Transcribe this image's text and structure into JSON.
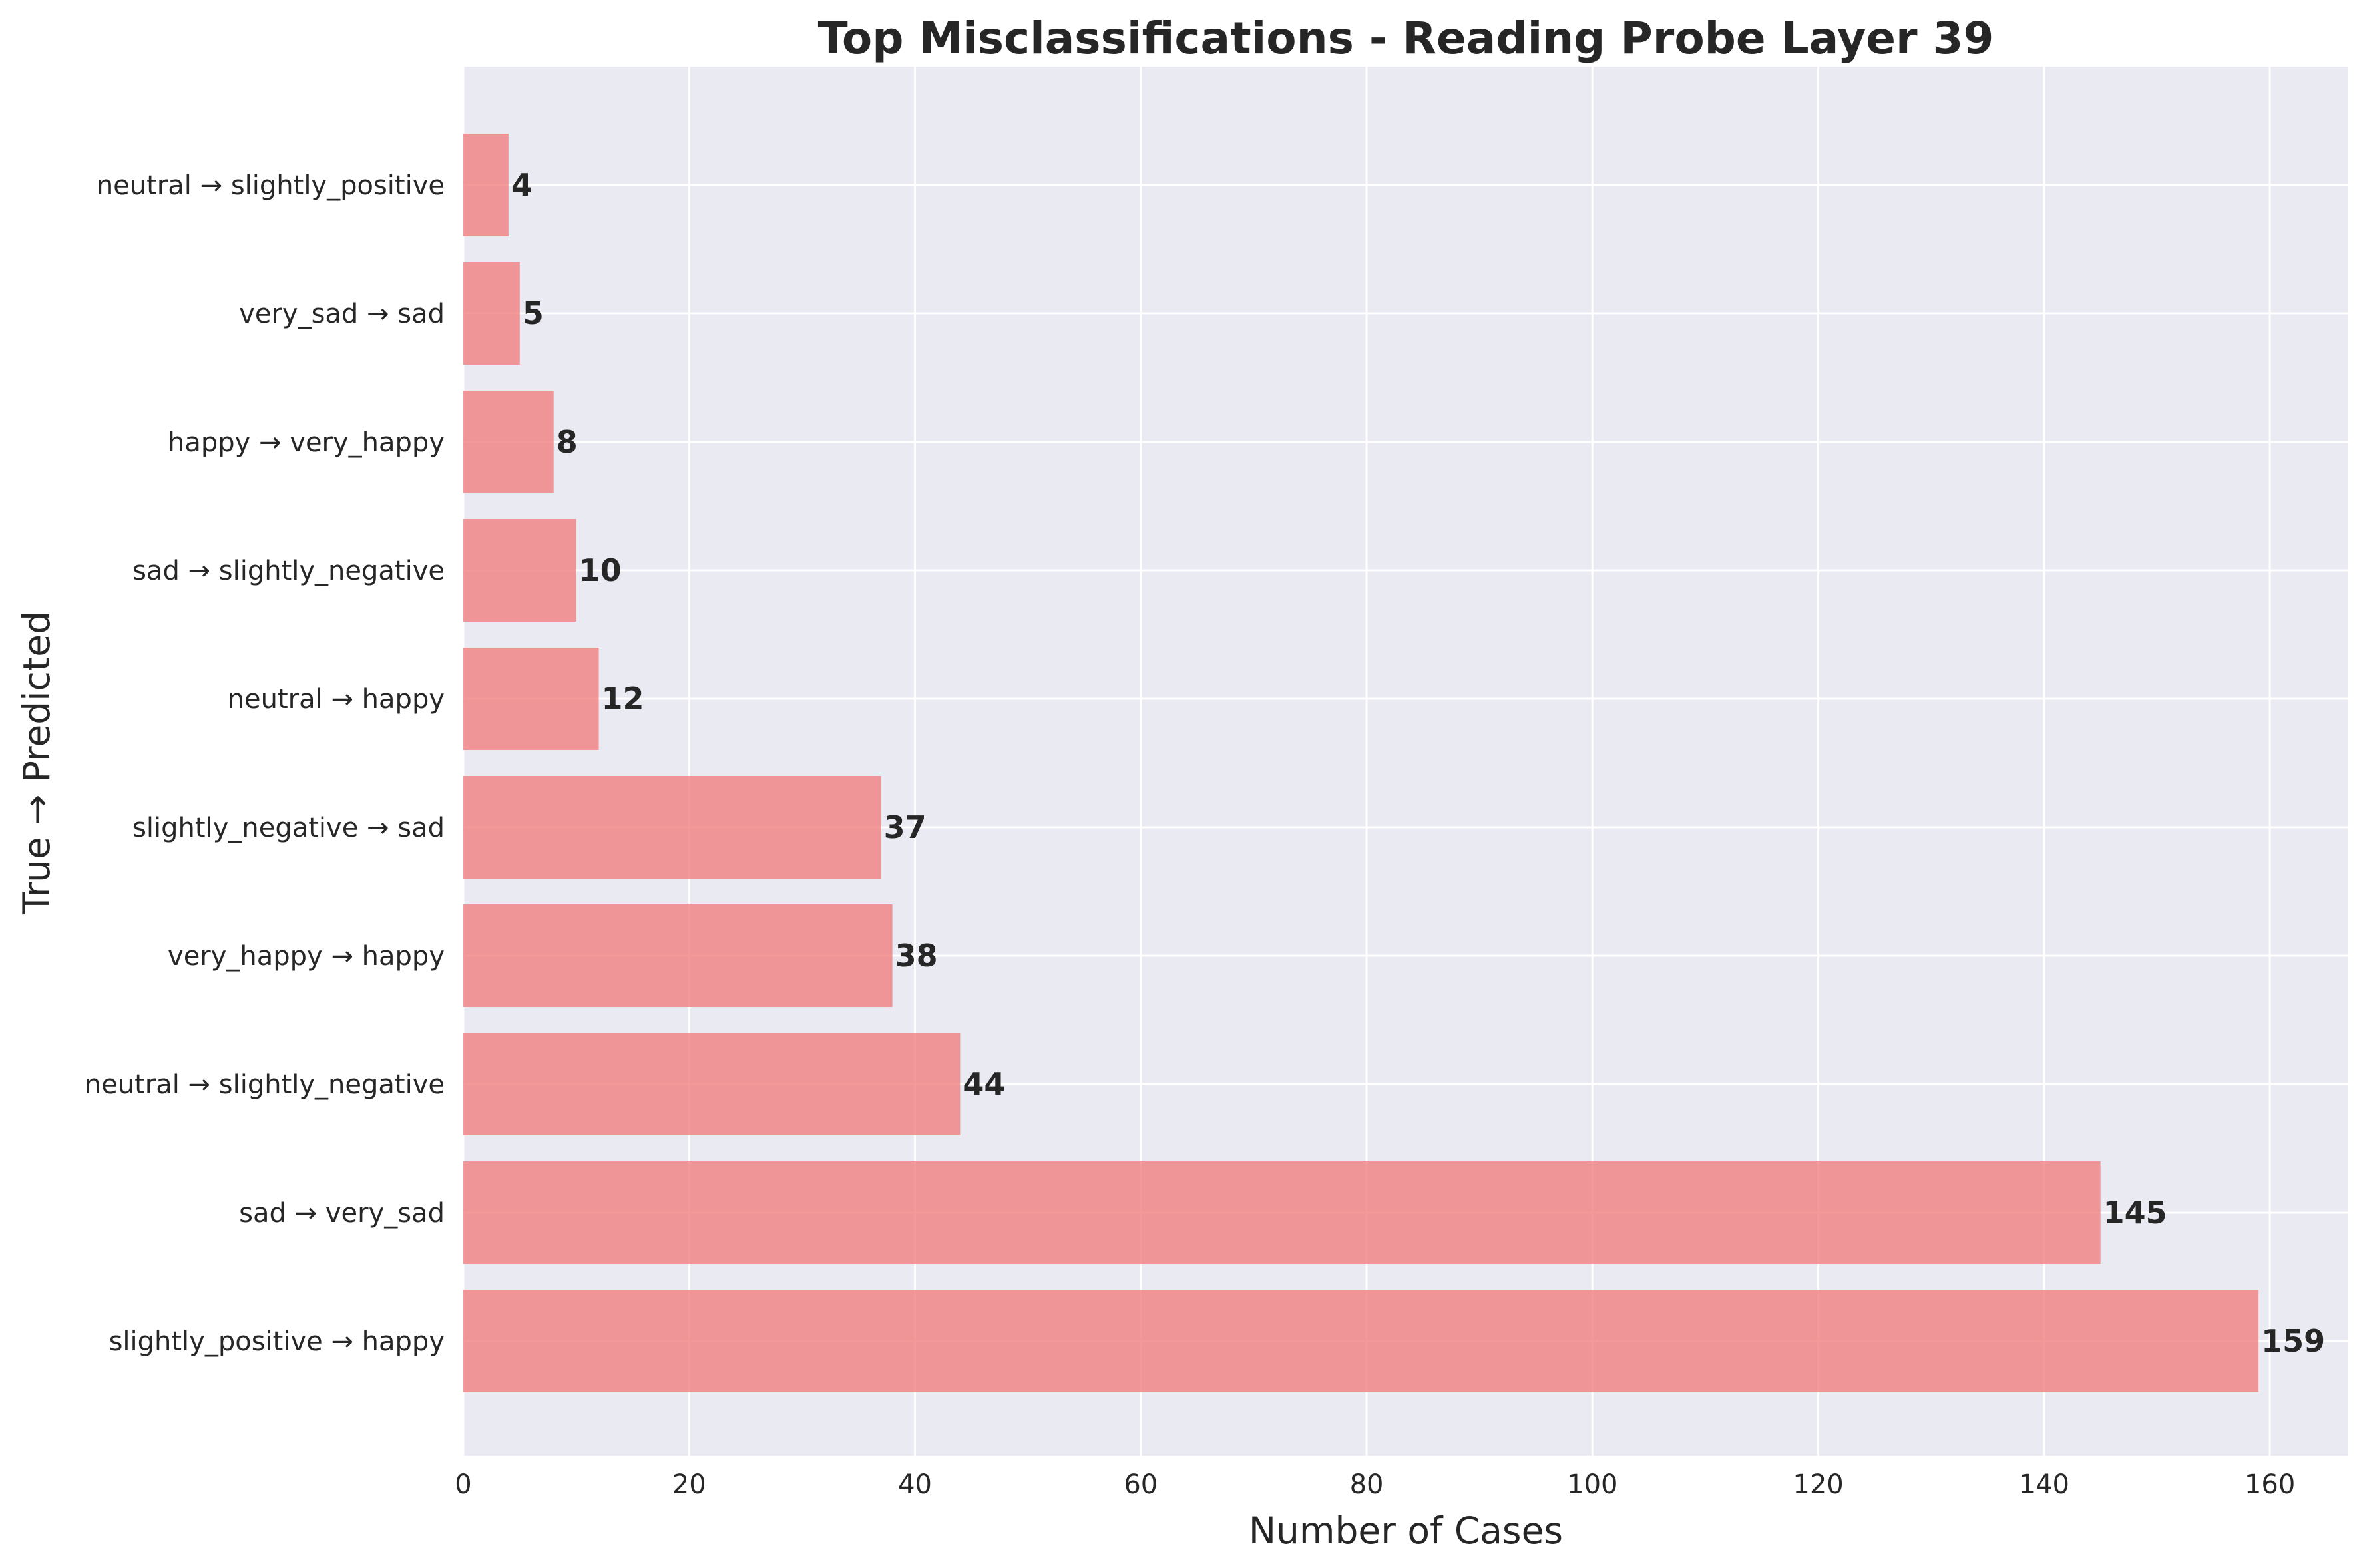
{
  "chart_data": {
    "type": "bar",
    "orientation": "horizontal",
    "title": "Top Misclassifications - Reading Probe Layer 39",
    "xlabel": "Number of Cases",
    "ylabel": "True → Predicted",
    "categories": [
      "slightly_positive → happy",
      "sad → very_sad",
      "neutral → slightly_negative",
      "very_happy → happy",
      "slightly_negative → sad",
      "neutral → happy",
      "sad → slightly_negative",
      "happy → very_happy",
      "very_sad → sad",
      "neutral → slightly_positive"
    ],
    "values": [
      159,
      145,
      44,
      38,
      37,
      12,
      10,
      8,
      5,
      4
    ],
    "data_labels": [
      "159",
      "145",
      "44",
      "38",
      "37",
      "12",
      "10",
      "8",
      "5",
      "4"
    ],
    "xlim": [
      0,
      166.95
    ],
    "xticks": [
      0,
      20,
      40,
      60,
      80,
      100,
      120,
      140,
      160
    ],
    "xtick_labels": [
      "0",
      "20",
      "40",
      "60",
      "80",
      "100",
      "120",
      "140",
      "160"
    ],
    "grid": true,
    "colors": {
      "bar": "#f08080",
      "bar_opacity": 0.8,
      "plot_background": "#eaeaf2",
      "grid": "#ffffff",
      "text": "#262626"
    }
  }
}
